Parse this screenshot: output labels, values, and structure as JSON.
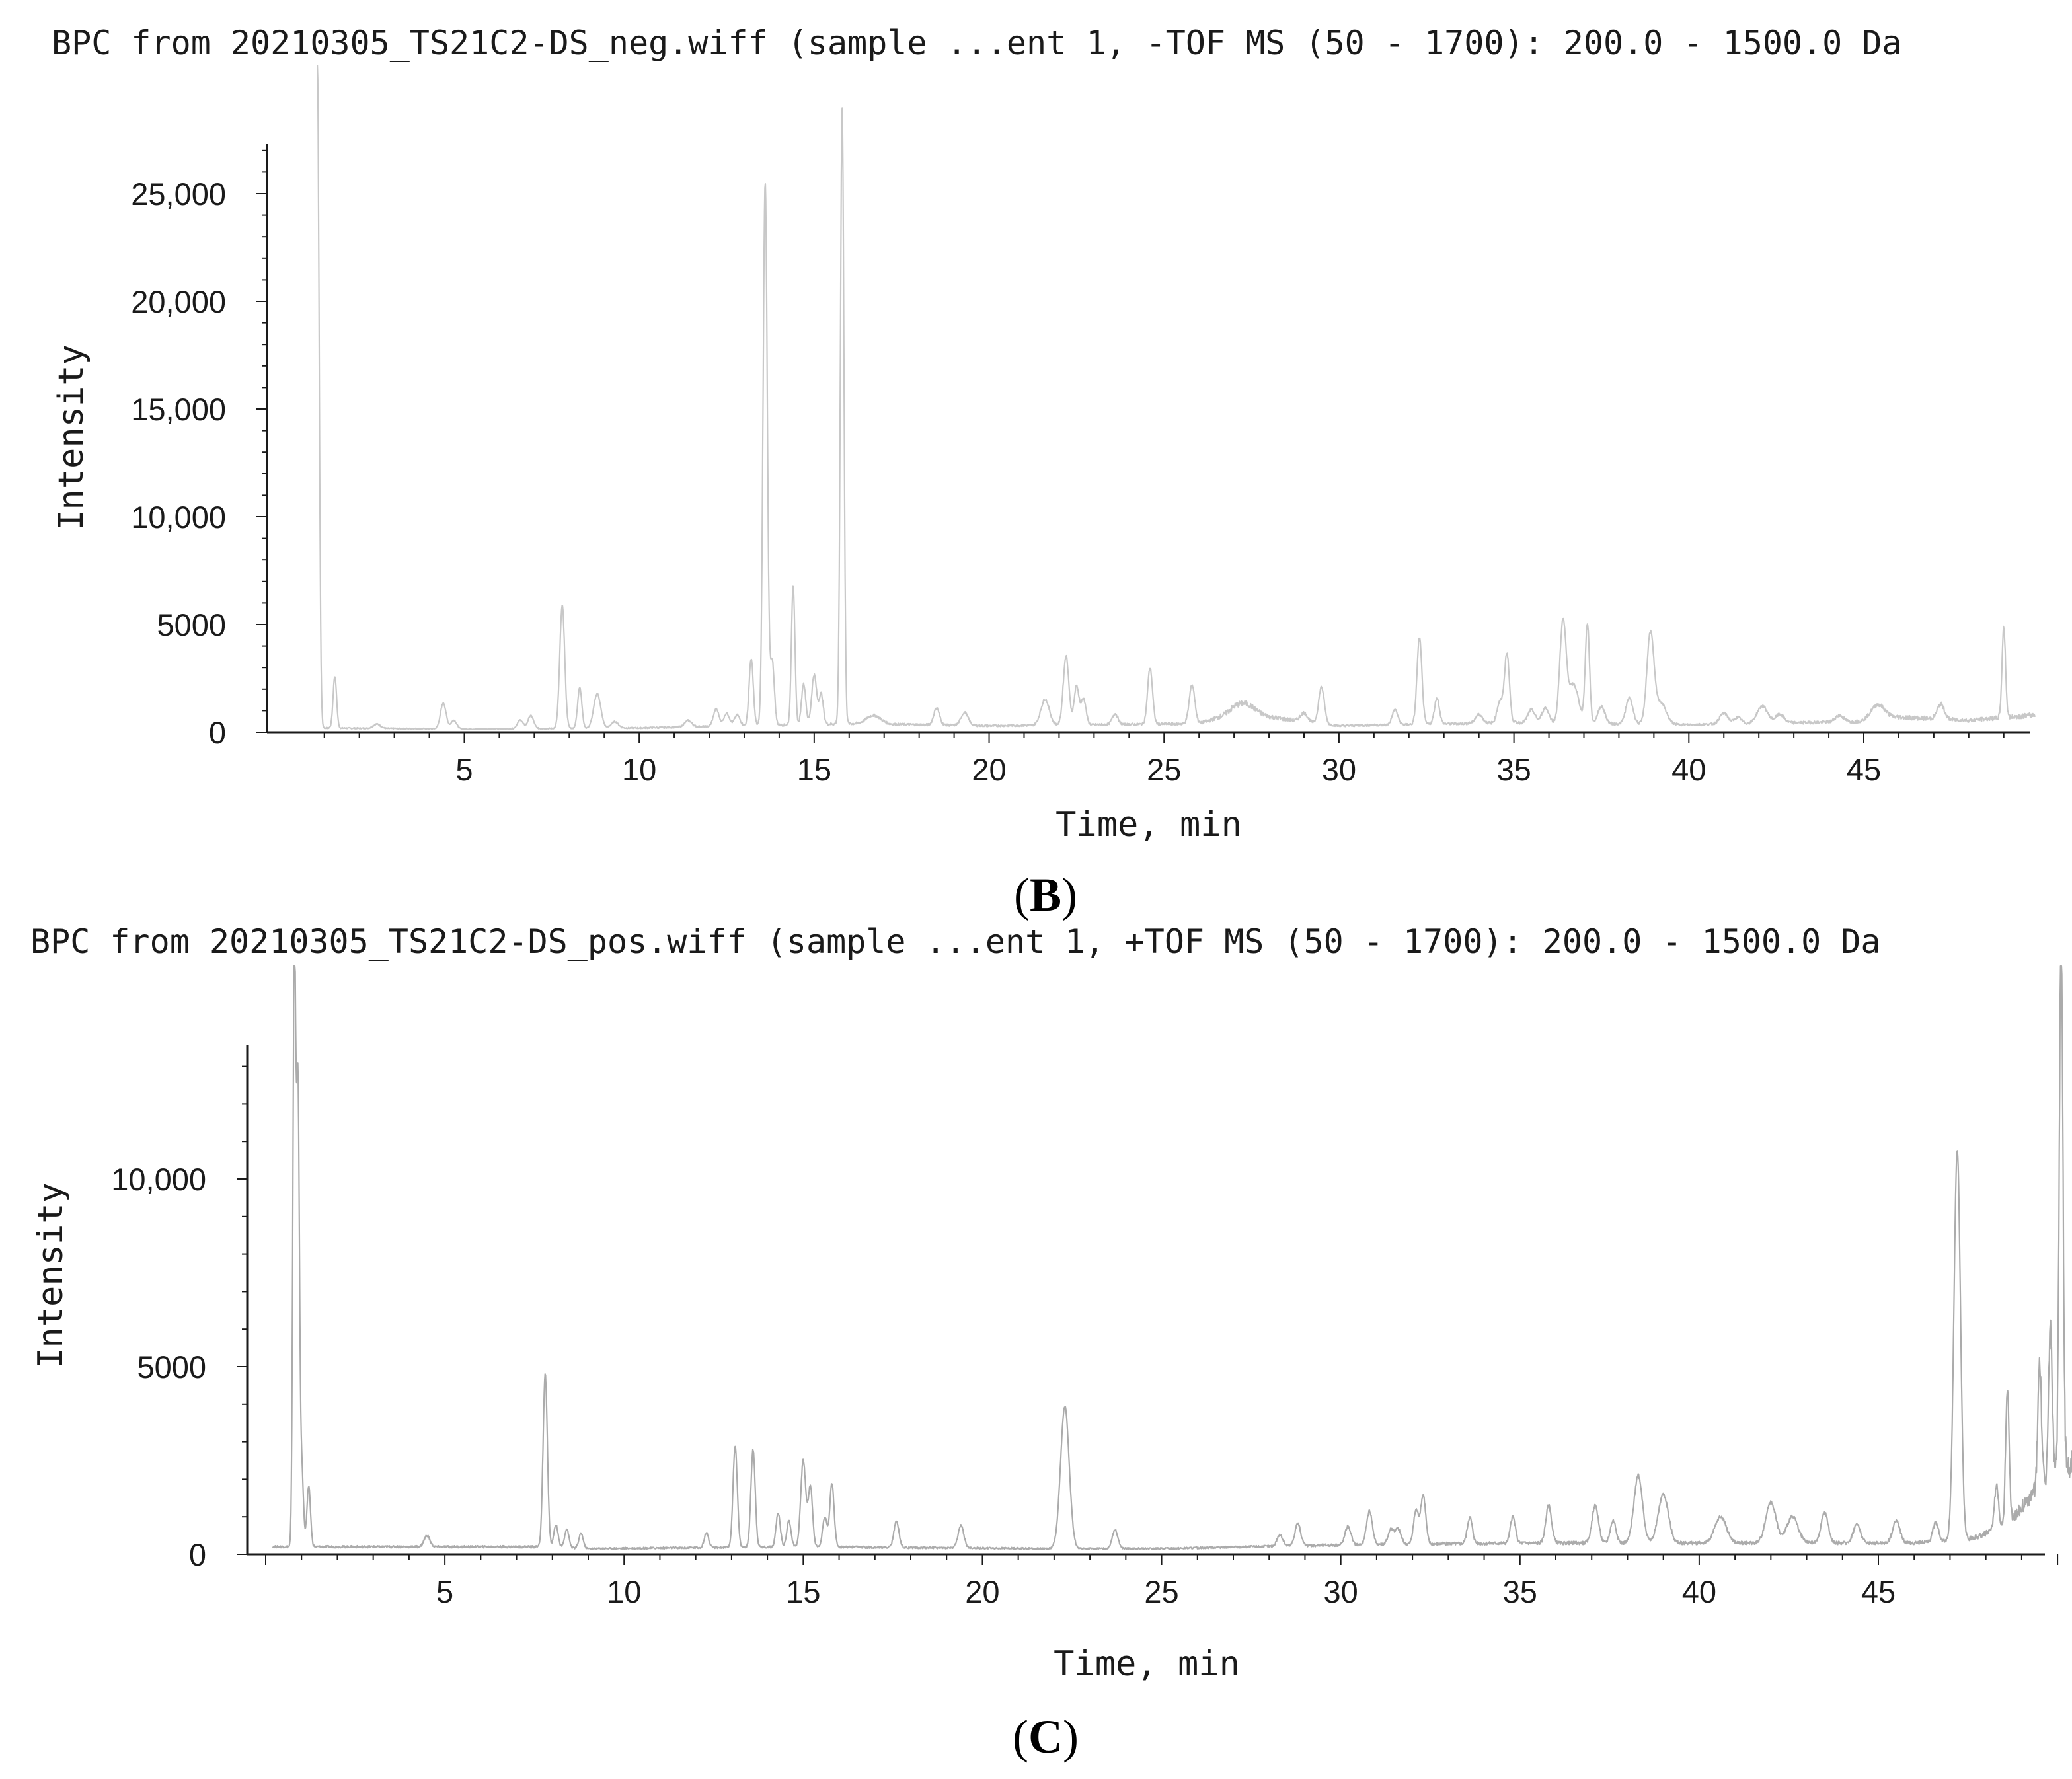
{
  "chart_data": [
    {
      "type": "line",
      "panel_label": "B",
      "title": "BPC from 20210305_TS21C2-DS_neg.wiff (sample ...ent 1, -TOF MS (50 - 1700): 200.0 - 1500.0 Da",
      "xlabel": "Time, min",
      "ylabel": "Intensity",
      "xlim": [
        0.2,
        49.9
      ],
      "ylim": [
        0,
        28500
      ],
      "x_ticks": [
        5,
        10,
        15,
        20,
        25,
        30,
        35,
        40,
        45
      ],
      "x_tick_labels": [
        "5",
        "10",
        "15",
        "20",
        "25",
        "30",
        "35",
        "40",
        "45"
      ],
      "y_ticks": [
        0,
        5000,
        10000,
        15000,
        20000,
        25000
      ],
      "y_tick_labels": [
        "0",
        "5000",
        "10,000",
        "15,000",
        "20,000",
        "25,000"
      ],
      "baseline": [
        [
          0.8,
          200
        ],
        [
          5,
          150
        ],
        [
          10,
          200
        ],
        [
          16,
          400
        ],
        [
          20,
          300
        ],
        [
          26,
          400
        ],
        [
          27,
          900
        ],
        [
          30,
          300
        ],
        [
          35,
          450
        ],
        [
          40,
          350
        ],
        [
          45,
          500
        ],
        [
          46,
          700
        ],
        [
          48,
          550
        ],
        [
          49.9,
          800
        ]
      ],
      "peaks": [
        [
          0.8,
          31000,
          0.05
        ],
        [
          1.3,
          2400,
          0.05
        ],
        [
          2.5,
          200,
          0.1
        ],
        [
          4.4,
          1200,
          0.08
        ],
        [
          4.7,
          400,
          0.08
        ],
        [
          6.6,
          400,
          0.08
        ],
        [
          6.9,
          600,
          0.08
        ],
        [
          7.8,
          5700,
          0.07
        ],
        [
          8.3,
          1900,
          0.06
        ],
        [
          8.8,
          1600,
          0.1
        ],
        [
          9.3,
          300,
          0.1
        ],
        [
          11.4,
          300,
          0.1
        ],
        [
          12.2,
          800,
          0.08
        ],
        [
          12.5,
          600,
          0.08
        ],
        [
          12.8,
          500,
          0.08
        ],
        [
          13.2,
          3100,
          0.06
        ],
        [
          13.6,
          25200,
          0.06
        ],
        [
          13.8,
          3000,
          0.06
        ],
        [
          14.4,
          6500,
          0.05
        ],
        [
          14.7,
          1900,
          0.06
        ],
        [
          15.0,
          2300,
          0.07
        ],
        [
          15.2,
          1400,
          0.06
        ],
        [
          15.8,
          28600,
          0.05
        ],
        [
          16.7,
          400,
          0.2
        ],
        [
          18.5,
          800,
          0.08
        ],
        [
          19.3,
          600,
          0.1
        ],
        [
          21.6,
          1200,
          0.12
        ],
        [
          22.2,
          3200,
          0.08
        ],
        [
          22.5,
          1800,
          0.07
        ],
        [
          22.7,
          1200,
          0.07
        ],
        [
          23.6,
          500,
          0.08
        ],
        [
          24.6,
          2600,
          0.07
        ],
        [
          25.8,
          1800,
          0.08
        ],
        [
          27.3,
          500,
          0.3
        ],
        [
          29.0,
          400,
          0.1
        ],
        [
          29.5,
          1700,
          0.08
        ],
        [
          31.6,
          700,
          0.08
        ],
        [
          32.3,
          4000,
          0.07
        ],
        [
          32.8,
          1200,
          0.07
        ],
        [
          34.0,
          400,
          0.1
        ],
        [
          34.6,
          1000,
          0.08
        ],
        [
          34.8,
          3200,
          0.07
        ],
        [
          35.5,
          600,
          0.1
        ],
        [
          35.9,
          700,
          0.1
        ],
        [
          36.4,
          4600,
          0.09
        ],
        [
          36.7,
          1800,
          0.15
        ],
        [
          37.1,
          4600,
          0.06
        ],
        [
          37.5,
          800,
          0.1
        ],
        [
          38.3,
          1200,
          0.1
        ],
        [
          38.9,
          4200,
          0.1
        ],
        [
          39.2,
          1000,
          0.15
        ],
        [
          41.0,
          500,
          0.12
        ],
        [
          41.4,
          300,
          0.1
        ],
        [
          42.1,
          800,
          0.15
        ],
        [
          42.6,
          400,
          0.12
        ],
        [
          44.3,
          300,
          0.12
        ],
        [
          45.4,
          700,
          0.2
        ],
        [
          47.2,
          700,
          0.1
        ],
        [
          49.0,
          4200,
          0.05
        ]
      ]
    },
    {
      "type": "line",
      "panel_label": "C",
      "title": "BPC from 20210305_TS21C2-DS_pos.wiff (sample ...ent 1, +TOF MS (50 - 1700): 200.0 - 1500.0 Da",
      "xlabel": "Time, min",
      "ylabel": "Intensity",
      "xlim": [
        0,
        50.6
      ],
      "ylim": [
        0,
        13800
      ],
      "x_ticks": [
        5,
        10,
        15,
        20,
        25,
        30,
        35,
        40,
        45
      ],
      "x_tick_labels": [
        "5",
        "10",
        "15",
        "20",
        "25",
        "30",
        "35",
        "40",
        "45"
      ],
      "y_ticks": [
        0,
        5000,
        10000
      ],
      "y_tick_labels": [
        "0",
        "5000",
        "10,000"
      ],
      "baseline": [
        [
          0.2,
          200
        ],
        [
          5,
          200
        ],
        [
          7.5,
          200
        ],
        [
          9,
          150
        ],
        [
          15,
          200
        ],
        [
          22,
          150
        ],
        [
          25,
          150
        ],
        [
          30,
          250
        ],
        [
          35,
          300
        ],
        [
          40,
          300
        ],
        [
          46,
          300
        ],
        [
          47.5,
          400
        ],
        [
          48.5,
          700
        ],
        [
          49.5,
          1800
        ],
        [
          50.5,
          2500
        ]
      ],
      "peaks": [
        [
          0.8,
          16000,
          0.04
        ],
        [
          0.9,
          11800,
          0.04
        ],
        [
          1.0,
          2200,
          0.05
        ],
        [
          1.2,
          1600,
          0.05
        ],
        [
          4.5,
          300,
          0.08
        ],
        [
          7.8,
          4600,
          0.06
        ],
        [
          8.1,
          600,
          0.06
        ],
        [
          8.4,
          500,
          0.06
        ],
        [
          8.8,
          400,
          0.06
        ],
        [
          12.3,
          400,
          0.06
        ],
        [
          13.1,
          2700,
          0.06
        ],
        [
          13.6,
          2600,
          0.06
        ],
        [
          14.3,
          900,
          0.06
        ],
        [
          14.6,
          700,
          0.06
        ],
        [
          15.0,
          2300,
          0.07
        ],
        [
          15.2,
          1600,
          0.06
        ],
        [
          15.6,
          800,
          0.06
        ],
        [
          15.8,
          1700,
          0.06
        ],
        [
          17.6,
          700,
          0.07
        ],
        [
          19.4,
          600,
          0.08
        ],
        [
          22.3,
          3800,
          0.12
        ],
        [
          23.7,
          500,
          0.08
        ],
        [
          28.3,
          300,
          0.08
        ],
        [
          28.8,
          600,
          0.08
        ],
        [
          30.2,
          500,
          0.08
        ],
        [
          30.8,
          900,
          0.08
        ],
        [
          31.4,
          400,
          0.08
        ],
        [
          31.6,
          400,
          0.08
        ],
        [
          32.1,
          900,
          0.07
        ],
        [
          32.3,
          1300,
          0.07
        ],
        [
          33.6,
          700,
          0.07
        ],
        [
          34.8,
          700,
          0.07
        ],
        [
          35.8,
          1000,
          0.08
        ],
        [
          37.1,
          1000,
          0.09
        ],
        [
          37.6,
          600,
          0.08
        ],
        [
          38.3,
          1800,
          0.12
        ],
        [
          39.0,
          1300,
          0.14
        ],
        [
          40.6,
          700,
          0.16
        ],
        [
          42.0,
          1100,
          0.14
        ],
        [
          42.6,
          700,
          0.16
        ],
        [
          43.5,
          800,
          0.1
        ],
        [
          44.4,
          500,
          0.1
        ],
        [
          45.5,
          600,
          0.1
        ],
        [
          46.6,
          500,
          0.08
        ],
        [
          47.2,
          10400,
          0.09
        ],
        [
          48.3,
          1200,
          0.06
        ],
        [
          48.6,
          3600,
          0.05
        ],
        [
          49.5,
          3400,
          0.05
        ],
        [
          49.8,
          4000,
          0.05
        ],
        [
          50.1,
          14500,
          0.05
        ]
      ]
    }
  ]
}
